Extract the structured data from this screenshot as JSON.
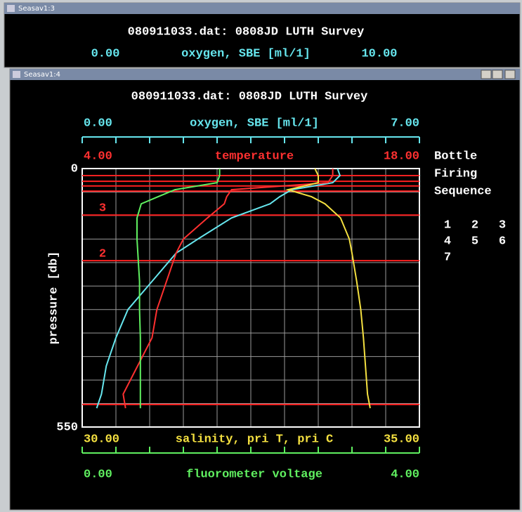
{
  "windows": [
    {
      "title": "Seasav1:3",
      "header": "080911033.dat: 0808JD LUTH Survey",
      "axis_label": "oxygen, SBE [ml/1]",
      "xlim": [
        0,
        10
      ],
      "xticks": [
        {
          "value": 0,
          "label": "0.00"
        },
        {
          "value": 10,
          "label": "10.00"
        }
      ]
    },
    {
      "title": "Seasav1:4"
    }
  ],
  "chart_data": {
    "type": "line",
    "title": "080911033.dat: 0808JD LUTH Survey",
    "ylabel": "pressure [db]",
    "ylim": [
      0,
      550
    ],
    "yticks": [
      0,
      550
    ],
    "ygrid": [
      50,
      100,
      150,
      200,
      250,
      300,
      350,
      400,
      450,
      500
    ],
    "grid": true,
    "pressure": [
      0,
      15,
      30,
      45,
      60,
      75,
      105,
      150,
      180,
      240,
      300,
      360,
      420,
      480,
      510
    ],
    "series": [
      {
        "name": "oxygen, SBE [ml/1]",
        "color": "#66e6ee",
        "axis_line": true,
        "xlim": [
          0,
          7
        ],
        "xticks": [
          {
            "value": 0,
            "label": "0.00"
          },
          {
            "value": 7,
            "label": "7.00"
          }
        ],
        "minor_ticks": [
          0.7,
          1.4,
          2.1,
          2.8,
          3.5,
          4.2,
          4.9,
          5.6,
          6.3
        ],
        "values": [
          5.3,
          5.35,
          5.2,
          4.35,
          4.1,
          3.9,
          3.1,
          2.4,
          1.95,
          1.45,
          0.95,
          0.7,
          0.5,
          0.4,
          0.3
        ]
      },
      {
        "name": "temperature",
        "color": "#ff3030",
        "axis_line": false,
        "xlim": [
          4,
          18
        ],
        "xticks": [
          {
            "value": 4,
            "label": "4.00"
          },
          {
            "value": 18,
            "label": "18.00"
          }
        ],
        "values": [
          14.4,
          14.4,
          14.2,
          10.2,
          10.0,
          9.9,
          9.2,
          8.2,
          7.9,
          7.5,
          7.1,
          6.9,
          6.3,
          5.7,
          5.8
        ]
      },
      {
        "name": "salinity, pri T, pri C",
        "color": "#f4e040",
        "axis_line": false,
        "xlim": [
          30,
          35
        ],
        "xticks": [
          {
            "value": 30,
            "label": "30.00"
          },
          {
            "value": 35,
            "label": "35.00"
          }
        ],
        "values": [
          33.45,
          33.5,
          33.5,
          33.05,
          33.4,
          33.6,
          33.83,
          33.96,
          34.0,
          34.07,
          34.13,
          34.17,
          34.2,
          34.23,
          34.27
        ]
      },
      {
        "name": "fluorometer voltage",
        "color": "#60f060",
        "axis_line": true,
        "xlim": [
          0,
          4
        ],
        "xticks": [
          {
            "value": 0,
            "label": "0.00"
          },
          {
            "value": 4,
            "label": "4.00"
          }
        ],
        "minor_ticks": [
          0.4,
          0.8,
          1.2,
          1.6,
          2.0,
          2.4,
          2.8,
          3.2,
          3.6
        ],
        "values": [
          1.63,
          1.63,
          1.6,
          1.1,
          0.9,
          0.7,
          0.65,
          0.65,
          0.66,
          0.68,
          0.68,
          0.69,
          0.69,
          0.69,
          0.69
        ]
      }
    ],
    "bottle_lines": [
      {
        "pressure": 15
      },
      {
        "pressure": 27
      },
      {
        "pressure": 37
      },
      {
        "pressure": 48
      },
      {
        "pressure": 99,
        "label": "3"
      },
      {
        "pressure": 196,
        "label": "2"
      },
      {
        "pressure": 502
      }
    ],
    "bottle_legend": [
      "Bottle",
      "Firing",
      "Sequence"
    ],
    "bottle_numbers": [
      "1",
      "2",
      "3",
      "4",
      "5",
      "6",
      "7"
    ]
  }
}
